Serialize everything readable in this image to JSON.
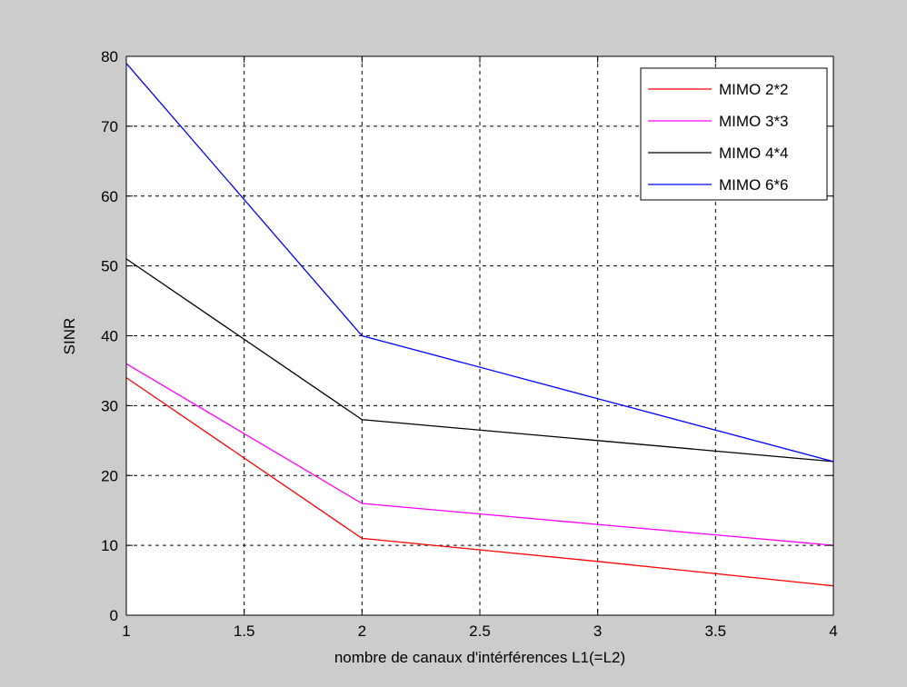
{
  "chart_data": {
    "type": "line",
    "xlabel": "nombre de canaux d'intérférences L1(=L2)",
    "ylabel": "SINR",
    "xlim": [
      1,
      4
    ],
    "ylim": [
      0,
      80
    ],
    "xticks": [
      1,
      1.5,
      2,
      2.5,
      3,
      3.5,
      4
    ],
    "xtick_labels": [
      "1",
      "1.5",
      "2",
      "2.5",
      "3",
      "3.5",
      "4"
    ],
    "yticks": [
      0,
      10,
      20,
      30,
      40,
      50,
      60,
      70,
      80
    ],
    "ytick_labels": [
      "0",
      "10",
      "20",
      "30",
      "40",
      "50",
      "60",
      "70",
      "80"
    ],
    "grid": true,
    "legend_position": "top-right",
    "x": [
      1,
      2,
      3,
      4
    ],
    "series": [
      {
        "name": "MIMO 2*2",
        "color": "#ff0000",
        "values": [
          34,
          11,
          7.7,
          4.2
        ]
      },
      {
        "name": "MIMO 3*3",
        "color": "#ff00ff",
        "values": [
          36,
          16,
          13,
          10
        ]
      },
      {
        "name": "MIMO 4*4",
        "color": "#000000",
        "values": [
          51,
          28,
          25,
          22
        ]
      },
      {
        "name": "MIMO 6*6",
        "color": "#0000ff",
        "values": [
          79,
          40,
          31,
          22
        ]
      }
    ]
  }
}
